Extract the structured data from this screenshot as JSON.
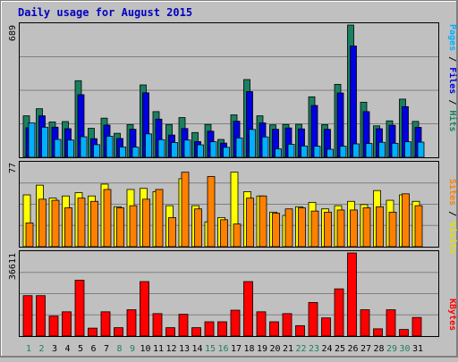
{
  "chart_data": [
    {
      "type": "bar",
      "title": "Daily usage for August 2015",
      "panel": "hits-files-pages",
      "categories": [
        "1",
        "2",
        "3",
        "4",
        "5",
        "6",
        "7",
        "8",
        "9",
        "10",
        "11",
        "12",
        "13",
        "14",
        "15",
        "16",
        "17",
        "18",
        "19",
        "20",
        "21",
        "22",
        "23",
        "24",
        "25",
        "26",
        "27",
        "28",
        "29",
        "30",
        "31"
      ],
      "weekend_days": [
        "1",
        "2",
        "8",
        "9",
        "15",
        "16",
        "22",
        "23",
        "29",
        "30"
      ],
      "ytick_label": "689",
      "ylim": [
        0,
        689
      ],
      "legend": [
        "Pages",
        "/",
        "Files",
        "/",
        "Hits"
      ],
      "series": [
        {
          "name": "Hits",
          "color": "#1a8060",
          "values": [
            216,
            253,
            184,
            186,
            399,
            151,
            204,
            125,
            170,
            377,
            238,
            171,
            207,
            129,
            171,
            93,
            221,
            405,
            216,
            169,
            171,
            172,
            315,
            170,
            380,
            689,
            287,
            164,
            190,
            303,
            187
          ]
        },
        {
          "name": "Files",
          "color": "#0000e0",
          "values": [
            154,
            216,
            157,
            149,
            326,
            97,
            168,
            98,
            146,
            336,
            199,
            116,
            150,
            82,
            136,
            74,
            188,
            342,
            179,
            146,
            153,
            148,
            270,
            146,
            335,
            580,
            238,
            149,
            167,
            264,
            156
          ]
        },
        {
          "name": "Pages",
          "color": "#00b0ff",
          "values": [
            179,
            157,
            93,
            90,
            107,
            66,
            110,
            54,
            53,
            122,
            92,
            77,
            90,
            65,
            81,
            52,
            101,
            145,
            106,
            44,
            68,
            59,
            58,
            42,
            58,
            70,
            72,
            78,
            73,
            81,
            79
          ]
        }
      ]
    },
    {
      "type": "bar",
      "panel": "sites-visits",
      "categories": [
        "1",
        "2",
        "3",
        "4",
        "5",
        "6",
        "7",
        "8",
        "9",
        "10",
        "11",
        "12",
        "13",
        "14",
        "15",
        "16",
        "17",
        "18",
        "19",
        "20",
        "21",
        "22",
        "23",
        "24",
        "25",
        "26",
        "27",
        "28",
        "29",
        "30",
        "31"
      ],
      "ytick_label": "77",
      "ylim": [
        0,
        77
      ],
      "legend": [
        "Sites",
        "/",
        "Visits"
      ],
      "series": [
        {
          "name": "Visits",
          "color": "#ffff00",
          "values": [
            48,
            57,
            45,
            47,
            50,
            47,
            58,
            37,
            53,
            54,
            51,
            38,
            63,
            38,
            23,
            27,
            69,
            51,
            47,
            32,
            29,
            37,
            41,
            35,
            38,
            42,
            39,
            52,
            43,
            48,
            42
          ]
        },
        {
          "name": "Sites",
          "color": "#ff8000",
          "values": [
            22,
            44,
            43,
            36,
            45,
            42,
            53,
            36,
            38,
            44,
            53,
            27,
            69,
            35,
            65,
            25,
            21,
            45,
            47,
            31,
            35,
            36,
            33,
            32,
            34,
            34,
            36,
            37,
            32,
            49,
            38
          ]
        }
      ]
    },
    {
      "type": "bar",
      "panel": "kbytes",
      "categories": [
        "1",
        "2",
        "3",
        "4",
        "5",
        "6",
        "7",
        "8",
        "9",
        "10",
        "11",
        "12",
        "13",
        "14",
        "15",
        "16",
        "17",
        "18",
        "19",
        "20",
        "21",
        "22",
        "23",
        "24",
        "25",
        "26",
        "27",
        "28",
        "29",
        "30",
        "31"
      ],
      "ytick_label": "36611",
      "ylim": [
        0,
        36611
      ],
      "legend": [
        "KBytes"
      ],
      "series": [
        {
          "name": "KBytes",
          "color": "#ff0000",
          "values": [
            17820,
            17820,
            8800,
            10700,
            24600,
            3500,
            10700,
            3700,
            11600,
            24000,
            9900,
            3700,
            9600,
            3700,
            6300,
            6300,
            11400,
            24000,
            10700,
            6300,
            9900,
            4600,
            14800,
            8000,
            20800,
            36611,
            11600,
            3200,
            11600,
            2900,
            8200
          ]
        }
      ]
    }
  ]
}
